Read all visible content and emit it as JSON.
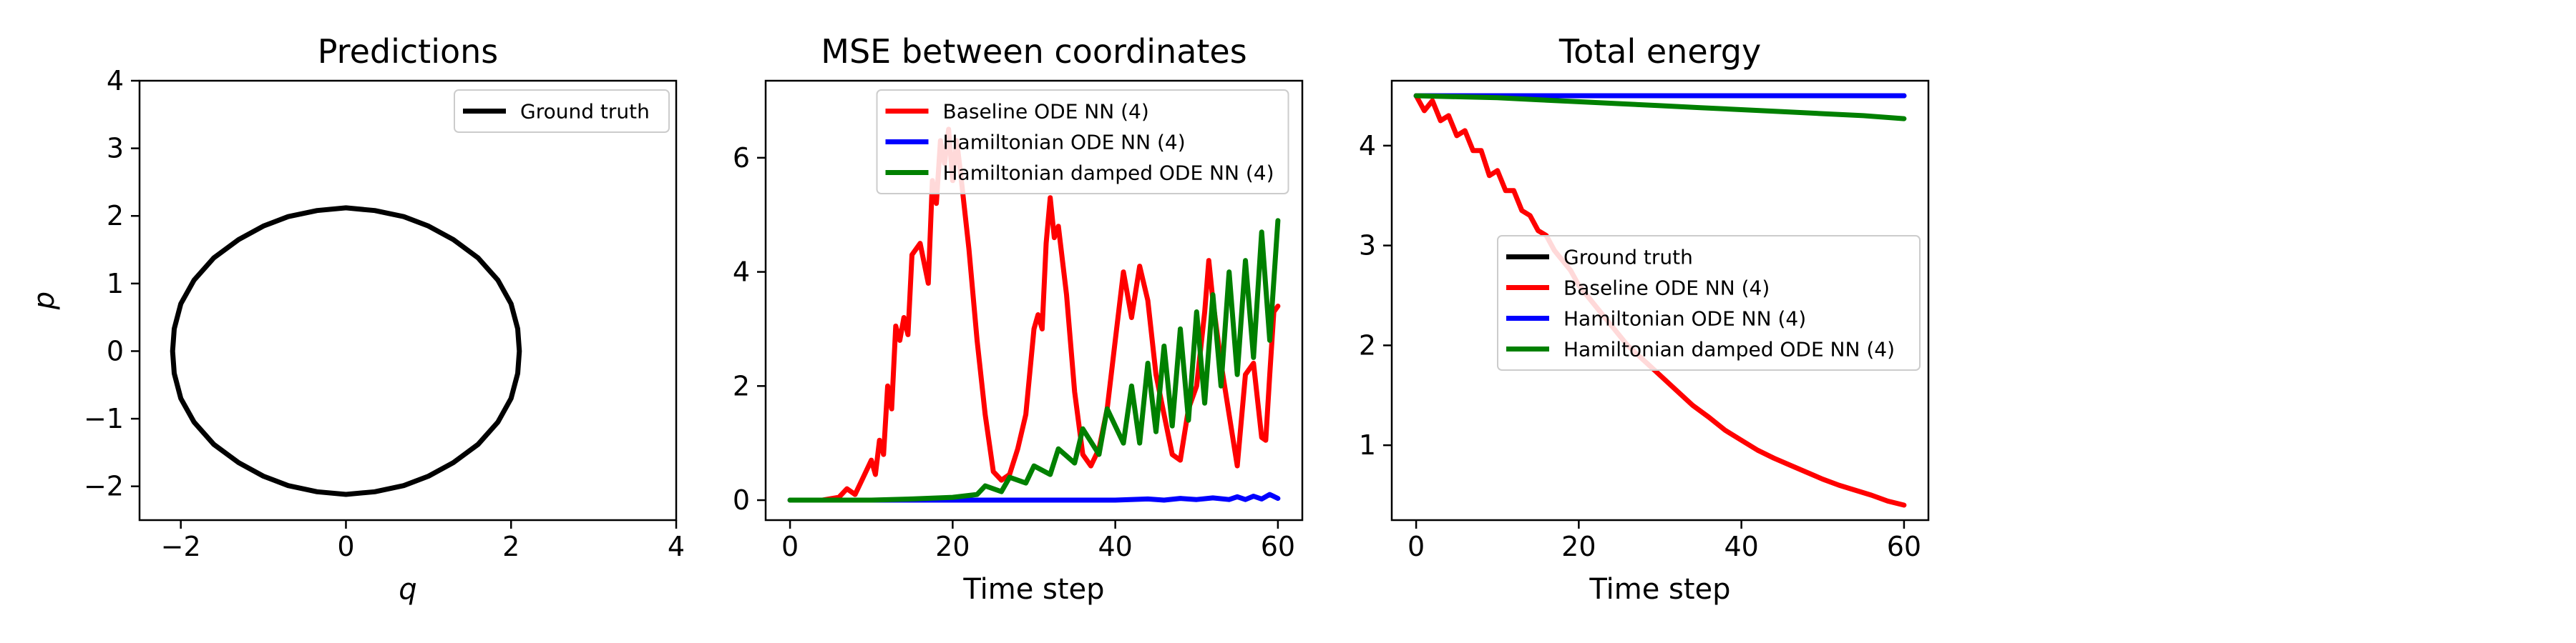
{
  "chart_data": [
    {
      "type": "line",
      "title": "Predictions",
      "xlabel": "q",
      "ylabel": "p",
      "xlim": [
        -2.5,
        4
      ],
      "ylim": [
        -2.5,
        4
      ],
      "xticks": [
        -2,
        0,
        2,
        4
      ],
      "yticks": [
        -2,
        -1,
        0,
        1,
        2,
        3,
        4
      ],
      "xtick_labels": [
        "−2",
        "0",
        "2",
        "4"
      ],
      "ytick_labels": [
        "−2",
        "−1",
        "0",
        "1",
        "2",
        "3",
        "4"
      ],
      "legend_position": "upper right",
      "grid": false,
      "series": [
        {
          "name": "Ground truth",
          "color": "#000000",
          "x": [
            2.1,
            2.08,
            2.0,
            1.84,
            1.6,
            1.3,
            1.0,
            0.7,
            0.35,
            0.0,
            -0.35,
            -0.7,
            -1.0,
            -1.3,
            -1.6,
            -1.84,
            -2.0,
            -2.08,
            -2.1,
            -2.08,
            -2.0,
            -1.84,
            -1.6,
            -1.3,
            -1.0,
            -0.7,
            -0.35,
            0.0,
            0.35,
            0.7,
            1.0,
            1.3,
            1.6,
            1.84,
            2.0,
            2.08,
            2.1
          ],
          "y": [
            0.0,
            0.33,
            0.7,
            1.05,
            1.38,
            1.65,
            1.85,
            1.99,
            2.08,
            2.12,
            2.08,
            1.99,
            1.85,
            1.65,
            1.38,
            1.05,
            0.7,
            0.33,
            0.0,
            -0.33,
            -0.7,
            -1.05,
            -1.38,
            -1.65,
            -1.85,
            -1.99,
            -2.08,
            -2.12,
            -2.08,
            -1.99,
            -1.85,
            -1.65,
            -1.38,
            -1.05,
            -0.7,
            -0.33,
            0.0
          ]
        }
      ]
    },
    {
      "type": "line",
      "title": "MSE between coordinates",
      "xlabel": "Time step",
      "ylabel": "",
      "xlim": [
        -3,
        63
      ],
      "ylim": [
        -0.35,
        7.35
      ],
      "xticks": [
        0,
        20,
        40,
        60
      ],
      "yticks": [
        0,
        2,
        4,
        6
      ],
      "xtick_labels": [
        "0",
        "20",
        "40",
        "60"
      ],
      "ytick_labels": [
        "0",
        "2",
        "4",
        "6"
      ],
      "legend_position": "upper center",
      "grid": false,
      "series": [
        {
          "name": "Baseline ODE NN (4)",
          "color": "#ff0000",
          "x": [
            0,
            4,
            6,
            7,
            8,
            9,
            10,
            10.5,
            11,
            11.5,
            12,
            12.5,
            13,
            13.5,
            14,
            14.5,
            15,
            16,
            17,
            17.5,
            18,
            18.5,
            19,
            19.5,
            20,
            20.5,
            21,
            22,
            23,
            24,
            25,
            26,
            27,
            28,
            29,
            30,
            30.5,
            31,
            31.5,
            32,
            32.5,
            33,
            34,
            35,
            36,
            37,
            38,
            39,
            40,
            41,
            42,
            43,
            44,
            45,
            46,
            47,
            48,
            49,
            50,
            51,
            51.5,
            52,
            53,
            54,
            55,
            56,
            57,
            58,
            58.5,
            59,
            59.5,
            60
          ],
          "y": [
            0.0,
            0.0,
            0.05,
            0.2,
            0.1,
            0.4,
            0.7,
            0.45,
            1.05,
            0.8,
            2.0,
            1.6,
            3.05,
            2.8,
            3.2,
            2.9,
            4.3,
            4.5,
            3.8,
            5.6,
            5.2,
            6.3,
            5.9,
            6.5,
            5.6,
            6.3,
            5.7,
            4.4,
            2.8,
            1.5,
            0.5,
            0.35,
            0.45,
            0.9,
            1.5,
            3.0,
            3.25,
            3.0,
            4.5,
            5.3,
            4.6,
            4.8,
            3.6,
            1.9,
            0.8,
            0.6,
            0.9,
            1.6,
            2.8,
            4.0,
            3.2,
            4.1,
            3.5,
            2.2,
            1.5,
            0.8,
            0.7,
            1.6,
            2.0,
            3.3,
            4.2,
            3.5,
            2.4,
            1.5,
            0.6,
            2.2,
            2.4,
            1.1,
            1.05,
            2.2,
            3.3,
            3.4
          ]
        },
        {
          "name": "Hamiltonian ODE NN (4)",
          "color": "#0000ff",
          "x": [
            0,
            10,
            20,
            30,
            40,
            44,
            46,
            48,
            50,
            52,
            54,
            55,
            56,
            57,
            58,
            59,
            60
          ],
          "y": [
            0.0,
            0.0,
            0.0,
            0.0,
            0.0,
            0.02,
            0.0,
            0.03,
            0.01,
            0.04,
            0.01,
            0.06,
            0.01,
            0.07,
            0.02,
            0.1,
            0.03
          ]
        },
        {
          "name": "Hamiltonian damped ODE NN (4)",
          "color": "#008000",
          "x": [
            0,
            10,
            15,
            20,
            23,
            24,
            26,
            27,
            29,
            30,
            32,
            33,
            35,
            36,
            38,
            39,
            41,
            42,
            43,
            44,
            45,
            46,
            47,
            48,
            49,
            50,
            51,
            52,
            53,
            54,
            55,
            56,
            57,
            58,
            59,
            60
          ],
          "y": [
            0.0,
            0.0,
            0.02,
            0.05,
            0.1,
            0.25,
            0.15,
            0.4,
            0.3,
            0.6,
            0.45,
            0.9,
            0.65,
            1.25,
            0.8,
            1.6,
            1.0,
            2.0,
            1.0,
            2.4,
            1.2,
            2.7,
            1.3,
            3.0,
            1.4,
            3.3,
            1.7,
            3.6,
            2.0,
            4.0,
            2.2,
            4.2,
            2.5,
            4.7,
            2.8,
            4.9
          ]
        }
      ]
    },
    {
      "type": "line",
      "title": "Total energy",
      "xlabel": "Time step",
      "ylabel": "",
      "xlim": [
        -3,
        63
      ],
      "ylim": [
        0.25,
        4.65
      ],
      "xticks": [
        0,
        20,
        40,
        60
      ],
      "yticks": [
        1,
        2,
        3,
        4
      ],
      "xtick_labels": [
        "0",
        "20",
        "40",
        "60"
      ],
      "ytick_labels": [
        "1",
        "2",
        "3",
        "4"
      ],
      "legend_position": "center right",
      "grid": false,
      "series": [
        {
          "name": "Ground truth",
          "color": "#000000",
          "x": [
            0,
            60
          ],
          "y": [
            4.5,
            4.5
          ]
        },
        {
          "name": "Baseline ODE NN (4)",
          "color": "#ff0000",
          "x": [
            0,
            1,
            2,
            3,
            4,
            5,
            6,
            7,
            8,
            9,
            10,
            11,
            12,
            13,
            14,
            15,
            16,
            17,
            18,
            19,
            20,
            22,
            24,
            26,
            28,
            30,
            32,
            34,
            36,
            38,
            40,
            42,
            44,
            46,
            48,
            50,
            52,
            54,
            56,
            58,
            60
          ],
          "y": [
            4.5,
            4.35,
            4.45,
            4.25,
            4.3,
            4.1,
            4.15,
            3.95,
            3.95,
            3.7,
            3.75,
            3.55,
            3.55,
            3.35,
            3.3,
            3.15,
            3.1,
            2.95,
            2.85,
            2.75,
            2.6,
            2.4,
            2.2,
            2.0,
            1.85,
            1.7,
            1.55,
            1.4,
            1.28,
            1.15,
            1.05,
            0.95,
            0.87,
            0.8,
            0.73,
            0.66,
            0.6,
            0.55,
            0.5,
            0.44,
            0.4
          ]
        },
        {
          "name": "Hamiltonian ODE NN (4)",
          "color": "#0000ff",
          "x": [
            0,
            10,
            20,
            30,
            40,
            50,
            60
          ],
          "y": [
            4.5,
            4.5,
            4.5,
            4.5,
            4.5,
            4.5,
            4.5
          ]
        },
        {
          "name": "Hamiltonian damped ODE NN (4)",
          "color": "#008000",
          "x": [
            0,
            5,
            10,
            15,
            20,
            25,
            30,
            35,
            40,
            45,
            50,
            55,
            60
          ],
          "y": [
            4.5,
            4.49,
            4.48,
            4.46,
            4.44,
            4.42,
            4.4,
            4.38,
            4.36,
            4.34,
            4.32,
            4.3,
            4.27
          ]
        }
      ]
    }
  ]
}
